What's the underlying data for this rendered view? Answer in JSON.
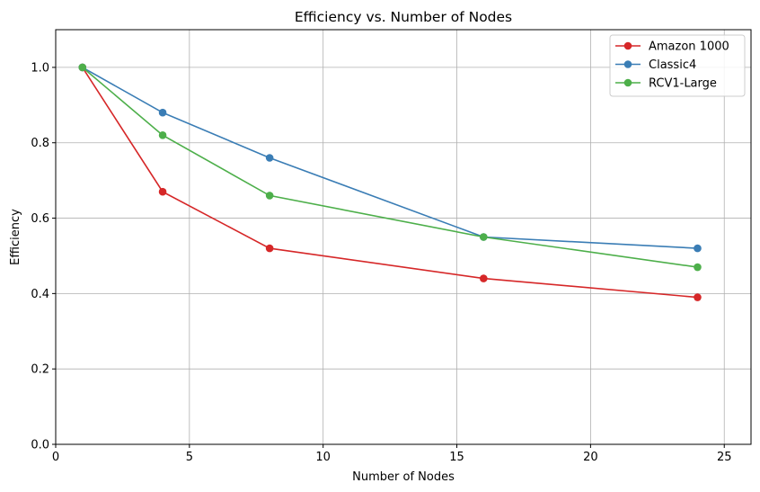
{
  "chart_data": {
    "type": "line",
    "title": "Efficiency vs. Number of Nodes",
    "xlabel": "Number of Nodes",
    "ylabel": "Efficiency",
    "xlim": [
      0,
      26
    ],
    "ylim": [
      0,
      1.1
    ],
    "xticks": [
      0,
      5,
      10,
      15,
      20,
      25
    ],
    "yticks": [
      0.0,
      0.2,
      0.4,
      0.6,
      0.8,
      1.0
    ],
    "xtick_labels": [
      "0",
      "5",
      "10",
      "15",
      "20",
      "25"
    ],
    "ytick_labels": [
      "0.0",
      "0.2",
      "0.4",
      "0.6",
      "0.8",
      "1.0"
    ],
    "grid": true,
    "legend_position": "top-right",
    "x": [
      1,
      4,
      8,
      16,
      24
    ],
    "series": [
      {
        "name": "Amazon 1000",
        "color": "#d62728",
        "values": [
          1.0,
          0.67,
          0.52,
          0.44,
          0.39
        ]
      },
      {
        "name": "Classic4",
        "color": "#3a7db5",
        "values": [
          1.0,
          0.88,
          0.76,
          0.55,
          0.52
        ]
      },
      {
        "name": "RCV1-Large",
        "color": "#4daf4a",
        "values": [
          1.0,
          0.82,
          0.66,
          0.55,
          0.47
        ]
      }
    ]
  }
}
